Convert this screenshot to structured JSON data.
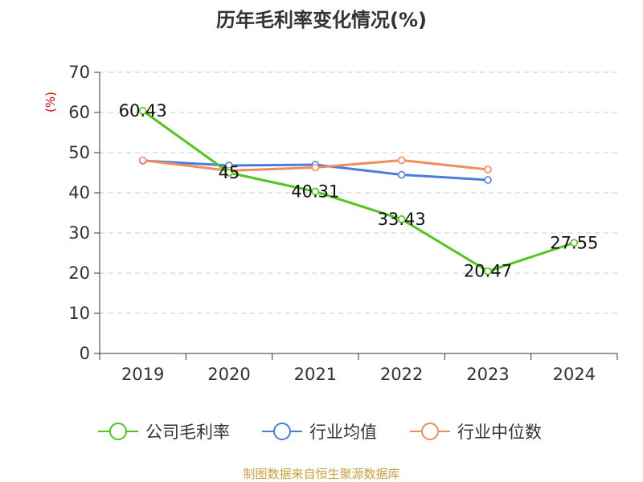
{
  "chart_data": {
    "type": "line",
    "title": "历年毛利率变化情况(%)",
    "y_unit": "(%)",
    "categories": [
      "2019",
      "2020",
      "2021",
      "2022",
      "2023",
      "2024"
    ],
    "ylim": [
      0,
      70
    ],
    "yticks": [
      0,
      10,
      20,
      30,
      40,
      50,
      60,
      70
    ],
    "grid": true,
    "legend_position": "bottom",
    "series": [
      {
        "name": "公司毛利率",
        "color": "#52c41a",
        "values": [
          60.43,
          45,
          40.31,
          33.43,
          20.47,
          27.55
        ],
        "data_labels": [
          "60.43",
          "45",
          "40.31",
          "33.43",
          "20.47",
          "27.55"
        ]
      },
      {
        "name": "行业均值",
        "color": "#4a7ede",
        "values": [
          48.0,
          46.8,
          47.0,
          44.5,
          43.2,
          null
        ]
      },
      {
        "name": "行业中位数",
        "color": "#f28c5a",
        "values": [
          48.1,
          45.5,
          46.3,
          48.1,
          45.8,
          null
        ]
      }
    ]
  },
  "source": {
    "text": "制图数据来自恒生聚源数据库",
    "color": "#c8a040"
  }
}
